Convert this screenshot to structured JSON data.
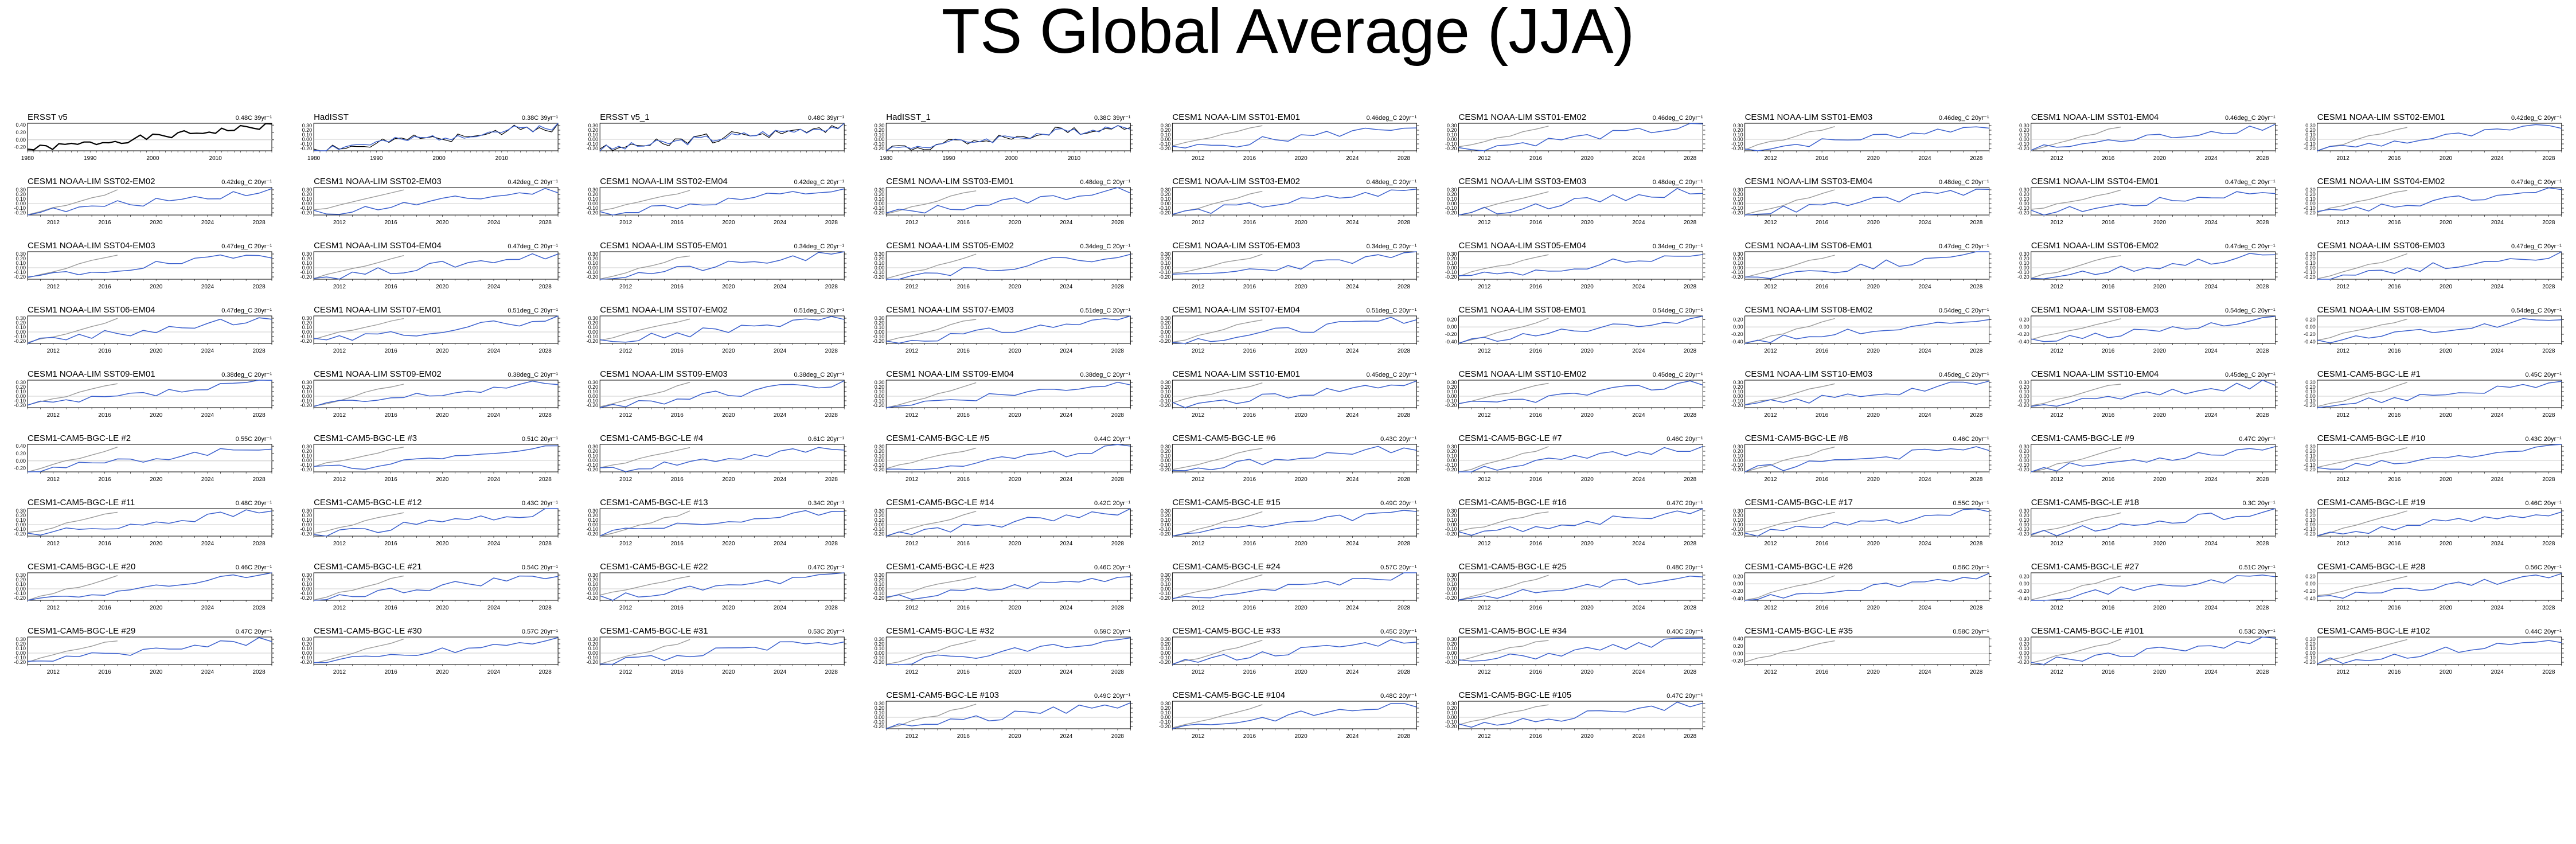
{
  "title": "TS Global Average (JJA)",
  "colors": {
    "observed": "#000000",
    "ensemble": "#3a5fcd",
    "reference": "#9a9a9a",
    "axis": "#000000"
  },
  "chart_data": {
    "type": "line",
    "panels": [
      {
        "label": "ERSST v5",
        "trend": "0.48C 39yr⁻¹",
        "years": [
          1980,
          2019
        ],
        "xticks": [
          1980,
          1990,
          2000,
          2010
        ],
        "yticks": [
          "0.40",
          "0.20",
          "0.00",
          "-0.20"
        ],
        "ylim": [
          -0.3,
          0.45
        ],
        "kind": "obs",
        "seed": 1
      },
      {
        "label": "HadISST",
        "trend": "0.38C 39yr⁻¹",
        "years": [
          1980,
          2019
        ],
        "xticks": [
          1980,
          1990,
          2000,
          2010
        ],
        "yticks": [
          "0.30",
          "0.20",
          "0.10",
          "0.00",
          "-0.10",
          "-0.20"
        ],
        "ylim": [
          -0.25,
          0.35
        ],
        "kind": "obsmulti",
        "seed": 2
      },
      {
        "label": "ERSST v5_1",
        "trend": "0.48C 39yr⁻¹",
        "years": [
          1980,
          2019
        ],
        "xticks": [],
        "yticks": [
          "0.30",
          "0.20",
          "0.10",
          "0.00",
          "-0.10",
          "-0.20"
        ],
        "ylim": [
          -0.25,
          0.35
        ],
        "kind": "obsblue",
        "seed": 3
      },
      {
        "label": "HadISST_1",
        "trend": "0.38C 39yr⁻¹",
        "years": [
          1980,
          2019
        ],
        "xticks": [
          1980,
          1990,
          2000,
          2010
        ],
        "yticks": [
          "0.30",
          "0.20",
          "0.10",
          "0.00",
          "-0.10",
          "-0.20"
        ],
        "ylim": [
          -0.25,
          0.35
        ],
        "kind": "obsmulti",
        "seed": 4
      },
      {
        "label": "CESM1 NOAA-LIM SST01-EM01",
        "trend": "0.46deg_C 20yr⁻¹",
        "seed": 5
      },
      {
        "label": "CESM1 NOAA-LIM SST01-EM02",
        "trend": "0.46deg_C 20yr⁻¹",
        "seed": 6
      },
      {
        "label": "CESM1 NOAA-LIM SST01-EM03",
        "trend": "0.46deg_C 20yr⁻¹",
        "seed": 7
      },
      {
        "label": "CESM1 NOAA-LIM SST01-EM04",
        "trend": "0.46deg_C 20yr⁻¹",
        "seed": 8
      },
      {
        "label": "CESM1 NOAA-LIM SST02-EM01",
        "trend": "0.42deg_C 20yr⁻¹",
        "seed": 9
      },
      {
        "label": "CESM1 NOAA-LIM SST02-EM02",
        "trend": "0.42deg_C 20yr⁻¹",
        "seed": 10
      },
      {
        "label": "CESM1 NOAA-LIM SST02-EM03",
        "trend": "0.42deg_C 20yr⁻¹",
        "seed": 11
      },
      {
        "label": "CESM1 NOAA-LIM SST02-EM04",
        "trend": "0.42deg_C 20yr⁻¹",
        "seed": 12
      },
      {
        "label": "CESM1 NOAA-LIM SST03-EM01",
        "trend": "0.48deg_C 20yr⁻¹",
        "seed": 13
      },
      {
        "label": "CESM1 NOAA-LIM SST03-EM02",
        "trend": "0.48deg_C 20yr⁻¹",
        "seed": 14
      },
      {
        "label": "CESM1 NOAA-LIM SST03-EM03",
        "trend": "0.48deg_C 20yr⁻¹",
        "seed": 15
      },
      {
        "label": "CESM1 NOAA-LIM SST03-EM04",
        "trend": "0.48deg_C 20yr⁻¹",
        "seed": 16
      },
      {
        "label": "CESM1 NOAA-LIM SST04-EM01",
        "trend": "0.47deg_C 20yr⁻¹",
        "seed": 17
      },
      {
        "label": "CESM1 NOAA-LIM SST04-EM02",
        "trend": "0.47deg_C 20yr⁻¹",
        "seed": 18
      },
      {
        "label": "CESM1 NOAA-LIM SST04-EM03",
        "trend": "0.47deg_C 20yr⁻¹",
        "seed": 19
      },
      {
        "label": "CESM1 NOAA-LIM SST04-EM04",
        "trend": "0.47deg_C 20yr⁻¹",
        "seed": 20
      },
      {
        "label": "CESM1 NOAA-LIM SST05-EM01",
        "trend": "0.34deg_C 20yr⁻¹",
        "seed": 21
      },
      {
        "label": "CESM1 NOAA-LIM SST05-EM02",
        "trend": "0.34deg_C 20yr⁻¹",
        "seed": 22
      },
      {
        "label": "CESM1 NOAA-LIM SST05-EM03",
        "trend": "0.34deg_C 20yr⁻¹",
        "seed": 23
      },
      {
        "label": "CESM1 NOAA-LIM SST05-EM04",
        "trend": "0.34deg_C 20yr⁻¹",
        "seed": 24
      },
      {
        "label": "CESM1 NOAA-LIM SST06-EM01",
        "trend": "0.47deg_C 20yr⁻¹",
        "seed": 25
      },
      {
        "label": "CESM1 NOAA-LIM SST06-EM02",
        "trend": "0.47deg_C 20yr⁻¹",
        "seed": 26
      },
      {
        "label": "CESM1 NOAA-LIM SST06-EM03",
        "trend": "0.47deg_C 20yr⁻¹",
        "seed": 27
      },
      {
        "label": "CESM1 NOAA-LIM SST06-EM04",
        "trend": "0.47deg_C 20yr⁻¹",
        "seed": 28
      },
      {
        "label": "CESM1 NOAA-LIM SST07-EM01",
        "trend": "0.51deg_C 20yr⁻¹",
        "seed": 29
      },
      {
        "label": "CESM1 NOAA-LIM SST07-EM02",
        "trend": "0.51deg_C 20yr⁻¹",
        "seed": 30
      },
      {
        "label": "CESM1 NOAA-LIM SST07-EM03",
        "trend": "0.51deg_C 20yr⁻¹",
        "seed": 31
      },
      {
        "label": "CESM1 NOAA-LIM SST07-EM04",
        "trend": "0.51deg_C 20yr⁻¹",
        "seed": 32
      },
      {
        "label": "CESM1 NOAA-LIM SST08-EM01",
        "trend": "0.54deg_C 20yr⁻¹",
        "yticks": [
          "0.20",
          "0.00",
          "-0.20",
          "-0.40"
        ],
        "ylim": [
          -0.45,
          0.3
        ],
        "seed": 33
      },
      {
        "label": "CESM1 NOAA-LIM SST08-EM02",
        "trend": "0.54deg_C 20yr⁻¹",
        "yticks": [
          "0.20",
          "0.00",
          "-0.20",
          "-0.40"
        ],
        "ylim": [
          -0.45,
          0.3
        ],
        "seed": 34
      },
      {
        "label": "CESM1 NOAA-LIM SST08-EM03",
        "trend": "0.54deg_C 20yr⁻¹",
        "yticks": [
          "0.20",
          "0.00",
          "-0.20",
          "-0.40"
        ],
        "ylim": [
          -0.45,
          0.3
        ],
        "seed": 35
      },
      {
        "label": "CESM1 NOAA-LIM SST08-EM04",
        "trend": "0.54deg_C 20yr⁻¹",
        "yticks": [
          "0.20",
          "0.00",
          "-0.20",
          "-0.40"
        ],
        "ylim": [
          -0.45,
          0.3
        ],
        "seed": 36
      },
      {
        "label": "CESM1 NOAA-LIM SST09-EM01",
        "trend": "0.38deg_C 20yr⁻¹",
        "seed": 37
      },
      {
        "label": "CESM1 NOAA-LIM SST09-EM02",
        "trend": "0.38deg_C 20yr⁻¹",
        "seed": 38
      },
      {
        "label": "CESM1 NOAA-LIM SST09-EM03",
        "trend": "0.38deg_C 20yr⁻¹",
        "seed": 39
      },
      {
        "label": "CESM1 NOAA-LIM SST09-EM04",
        "trend": "0.38deg_C 20yr⁻¹",
        "seed": 40
      },
      {
        "label": "CESM1 NOAA-LIM SST10-EM01",
        "trend": "0.45deg_C 20yr⁻¹",
        "seed": 41
      },
      {
        "label": "CESM1 NOAA-LIM SST10-EM02",
        "trend": "0.45deg_C 20yr⁻¹",
        "seed": 42
      },
      {
        "label": "CESM1 NOAA-LIM SST10-EM03",
        "trend": "0.45deg_C 20yr⁻¹",
        "seed": 43
      },
      {
        "label": "CESM1 NOAA-LIM SST10-EM04",
        "trend": "0.45deg_C 20yr⁻¹",
        "seed": 44
      },
      {
        "label": "CESM1-CAM5-BGC-LE #1",
        "trend": "0.45C 20yr⁻¹",
        "seed": 45
      },
      {
        "label": "CESM1-CAM5-BGC-LE #2",
        "trend": "0.55C 20yr⁻¹",
        "yticks": [
          "0.40",
          "0.20",
          "0.00",
          "-0.20"
        ],
        "ylim": [
          -0.3,
          0.45
        ],
        "seed": 46
      },
      {
        "label": "CESM1-CAM5-BGC-LE #3",
        "trend": "0.51C 20yr⁻¹",
        "seed": 47
      },
      {
        "label": "CESM1-CAM5-BGC-LE #4",
        "trend": "0.61C 20yr⁻¹",
        "seed": 48
      },
      {
        "label": "CESM1-CAM5-BGC-LE #5",
        "trend": "0.44C 20yr⁻¹",
        "seed": 49
      },
      {
        "label": "CESM1-CAM5-BGC-LE #6",
        "trend": "0.43C 20yr⁻¹",
        "seed": 50
      },
      {
        "label": "CESM1-CAM5-BGC-LE #7",
        "trend": "0.46C 20yr⁻¹",
        "seed": 51
      },
      {
        "label": "CESM1-CAM5-BGC-LE #8",
        "trend": "0.46C 20yr⁻¹",
        "seed": 52
      },
      {
        "label": "CESM1-CAM5-BGC-LE #9",
        "trend": "0.47C 20yr⁻¹",
        "seed": 53
      },
      {
        "label": "CESM1-CAM5-BGC-LE #10",
        "trend": "0.43C 20yr⁻¹",
        "seed": 54
      },
      {
        "label": "CESM1-CAM5-BGC-LE #11",
        "trend": "0.48C 20yr⁻¹",
        "seed": 55
      },
      {
        "label": "CESM1-CAM5-BGC-LE #12",
        "trend": "0.43C 20yr⁻¹",
        "seed": 56
      },
      {
        "label": "CESM1-CAM5-BGC-LE #13",
        "trend": "0.34C 20yr⁻¹",
        "seed": 57
      },
      {
        "label": "CESM1-CAM5-BGC-LE #14",
        "trend": "0.42C 20yr⁻¹",
        "seed": 58
      },
      {
        "label": "CESM1-CAM5-BGC-LE #15",
        "trend": "0.49C 20yr⁻¹",
        "seed": 59
      },
      {
        "label": "CESM1-CAM5-BGC-LE #16",
        "trend": "0.47C 20yr⁻¹",
        "seed": 60
      },
      {
        "label": "CESM1-CAM5-BGC-LE #17",
        "trend": "0.55C 20yr⁻¹",
        "seed": 61
      },
      {
        "label": "CESM1-CAM5-BGC-LE #18",
        "trend": "0.3C 20yr⁻¹",
        "seed": 62
      },
      {
        "label": "CESM1-CAM5-BGC-LE #19",
        "trend": "0.46C 20yr⁻¹",
        "seed": 63
      },
      {
        "label": "CESM1-CAM5-BGC-LE #20",
        "trend": "0.46C 20yr⁻¹",
        "seed": 64
      },
      {
        "label": "CESM1-CAM5-BGC-LE #21",
        "trend": "0.54C 20yr⁻¹",
        "seed": 65
      },
      {
        "label": "CESM1-CAM5-BGC-LE #22",
        "trend": "0.47C 20yr⁻¹",
        "seed": 66
      },
      {
        "label": "CESM1-CAM5-BGC-LE #23",
        "trend": "0.46C 20yr⁻¹",
        "seed": 67
      },
      {
        "label": "CESM1-CAM5-BGC-LE #24",
        "trend": "0.57C 20yr⁻¹",
        "seed": 68
      },
      {
        "label": "CESM1-CAM5-BGC-LE #25",
        "trend": "0.48C 20yr⁻¹",
        "seed": 69
      },
      {
        "label": "CESM1-CAM5-BGC-LE #26",
        "trend": "0.56C 20yr⁻¹",
        "yticks": [
          "0.20",
          "0.00",
          "-0.20",
          "-0.40"
        ],
        "ylim": [
          -0.45,
          0.3
        ],
        "seed": 70
      },
      {
        "label": "CESM1-CAM5-BGC-LE #27",
        "trend": "0.51C 20yr⁻¹",
        "yticks": [
          "0.20",
          "0.00",
          "-0.20",
          "-0.40"
        ],
        "ylim": [
          -0.45,
          0.3
        ],
        "seed": 71
      },
      {
        "label": "CESM1-CAM5-BGC-LE #28",
        "trend": "0.56C 20yr⁻¹",
        "yticks": [
          "0.20",
          "0.00",
          "-0.20",
          "-0.40"
        ],
        "ylim": [
          -0.45,
          0.3
        ],
        "seed": 72
      },
      {
        "label": "CESM1-CAM5-BGC-LE #29",
        "trend": "0.47C 20yr⁻¹",
        "seed": 73
      },
      {
        "label": "CESM1-CAM5-BGC-LE #30",
        "trend": "0.57C 20yr⁻¹",
        "seed": 74
      },
      {
        "label": "CESM1-CAM5-BGC-LE #31",
        "trend": "0.53C 20yr⁻¹",
        "seed": 75
      },
      {
        "label": "CESM1-CAM5-BGC-LE #32",
        "trend": "0.59C 20yr⁻¹",
        "seed": 76
      },
      {
        "label": "CESM1-CAM5-BGC-LE #33",
        "trend": "0.45C 20yr⁻¹",
        "seed": 77
      },
      {
        "label": "CESM1-CAM5-BGC-LE #34",
        "trend": "0.40C 20yr⁻¹",
        "seed": 78
      },
      {
        "label": "CESM1-CAM5-BGC-LE #35",
        "trend": "0.58C 20yr⁻¹",
        "yticks": [
          "0.40",
          "0.20",
          "0.00",
          "-0.20"
        ],
        "ylim": [
          -0.3,
          0.45
        ],
        "kind": "refonly",
        "seed": 79
      },
      {
        "label": "CESM1-CAM5-BGC-LE #101",
        "trend": "0.53C 20yr⁻¹",
        "seed": 80
      },
      {
        "label": "CESM1-CAM5-BGC-LE #102",
        "trend": "0.44C 20yr⁻¹",
        "seed": 81
      },
      {
        "label": "CESM1-CAM5-BGC-LE #103",
        "trend": "0.49C 20yr⁻¹",
        "seed": 82
      },
      {
        "label": "CESM1-CAM5-BGC-LE #104",
        "trend": "0.48C 20yr⁻¹",
        "seed": 83
      },
      {
        "label": "CESM1-CAM5-BGC-LE #105",
        "trend": "0.47C 20yr⁻¹",
        "seed": 84
      }
    ],
    "defaults": {
      "years": [
        2010,
        2029
      ],
      "xticks": [
        2012,
        2016,
        2020,
        2024,
        2028
      ],
      "yticks": [
        "0.30",
        "0.20",
        "0.10",
        "0.00",
        "-0.10",
        "-0.20"
      ],
      "ylim": [
        -0.25,
        0.35
      ]
    },
    "bottom_row_panels": [
      "CESM1-CAM5-BGC-LE #103",
      "CESM1-CAM5-BGC-LE #104",
      "CESM1-CAM5-BGC-LE #105"
    ]
  }
}
